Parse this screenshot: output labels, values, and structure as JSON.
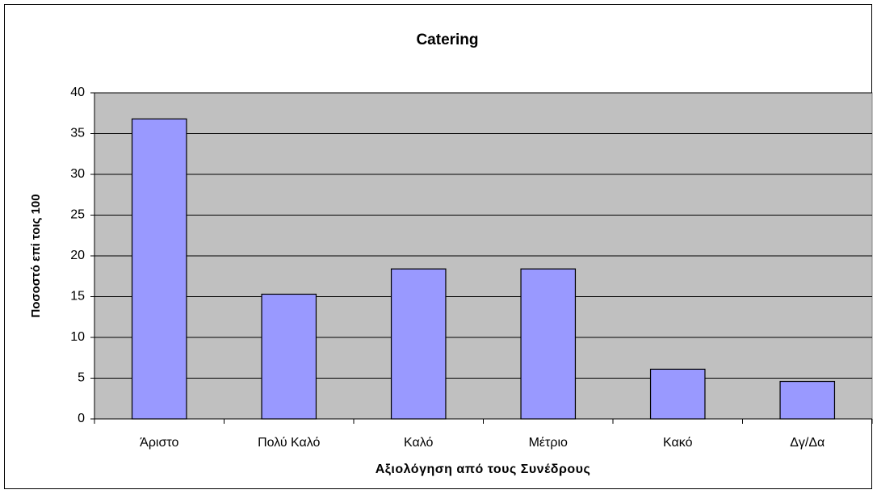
{
  "chart_data": {
    "type": "bar",
    "title": "Catering",
    "x_label": "Αξιολόγηση από τους Συνέδρους",
    "y_label": "Ποσοστό επί τοις 100",
    "categories": [
      "Άριστο",
      "Πολύ Καλό",
      "Καλό",
      "Μέτριο",
      "Κακό",
      "Δγ/Δα"
    ],
    "values": [
      36.8,
      15.3,
      18.4,
      18.4,
      6.1,
      4.6
    ],
    "color": "#9999ff",
    "ylim": [
      0,
      40
    ],
    "yticks": [
      0,
      5,
      10,
      15,
      20,
      25,
      30,
      35,
      40
    ],
    "grid": true
  }
}
